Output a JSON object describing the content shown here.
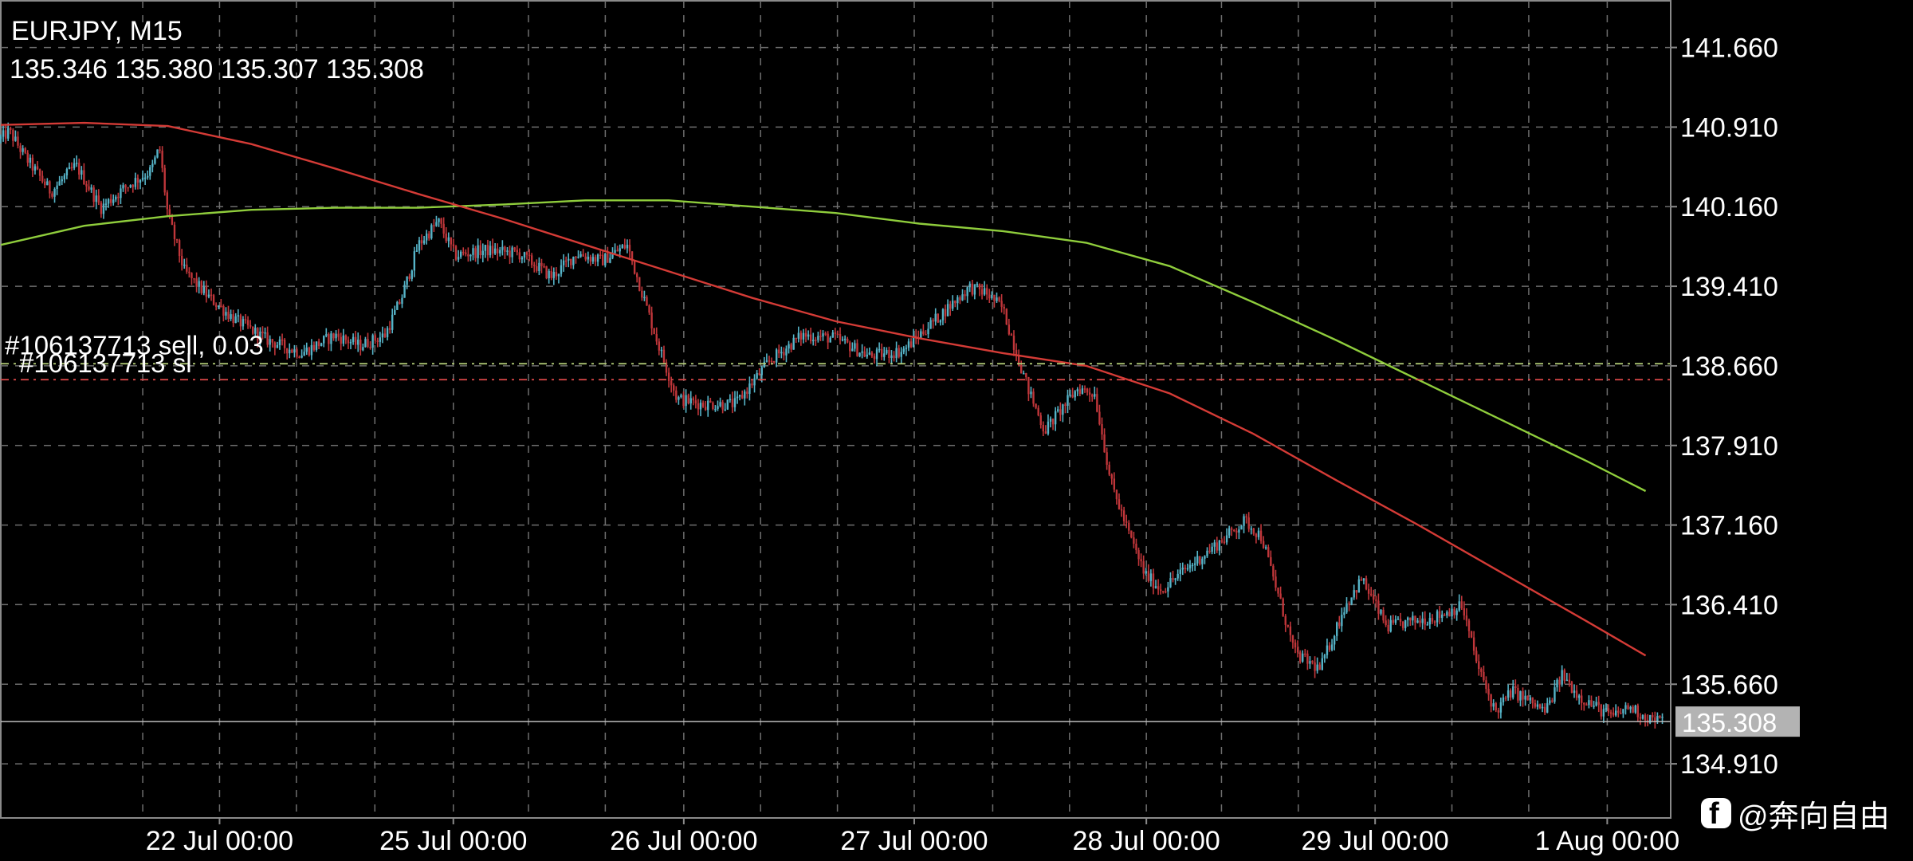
{
  "header": {
    "symbol_title": "EURJPY, M15",
    "ohlc_text": "135.346 135.380 135.307 135.308"
  },
  "watermark": {
    "icon": "facebook-icon",
    "text": "@奔向自由"
  },
  "chart_data": {
    "type": "candlestick",
    "symbol": "EURJPY",
    "timeframe": "M15",
    "ohlc": {
      "open": 135.346,
      "high": 135.38,
      "low": 135.307,
      "close": 135.308
    },
    "y_ticks": [
      "141.660",
      "140.910",
      "140.160",
      "139.410",
      "138.660",
      "137.910",
      "137.160",
      "136.410",
      "135.660",
      "134.910"
    ],
    "y_tick_values": [
      141.66,
      140.91,
      140.16,
      139.41,
      138.66,
      137.91,
      137.16,
      136.41,
      135.66,
      134.91
    ],
    "ylim": [
      134.4,
      142.1
    ],
    "x_ticks": [
      "22 Jul 00:00",
      "25 Jul 00:00",
      "26 Jul 00:00",
      "27 Jul 00:00",
      "28 Jul 00:00",
      "29 Jul 00:00",
      "1 Aug 00:00"
    ],
    "x_tick_index": [
      0.131,
      0.271,
      0.409,
      0.547,
      0.686,
      0.823,
      0.962
    ],
    "x_grid_index": [
      0.085,
      0.131,
      0.177,
      0.224,
      0.271,
      0.316,
      0.362,
      0.409,
      0.455,
      0.501,
      0.547,
      0.594,
      0.64,
      0.686,
      0.731,
      0.777,
      0.823,
      0.869,
      0.915,
      0.962
    ],
    "current_price": 135.308,
    "current_price_label": "135.308",
    "grid": true,
    "colors": {
      "background": "#000000",
      "bull_candle": "#56b4c8",
      "bear_candle": "#c0363a",
      "ma_green": "#8fcd3c",
      "ma_red": "#d43b36",
      "grid": "#6e6e6e",
      "order_line": "#b8d27a",
      "sl_line": "#e0494a",
      "price_label_bg": "#b3b3b3",
      "axis_text": "#ffffff"
    },
    "order_lines": [
      {
        "label": "#106137713 sell, 0.03",
        "price": 138.68,
        "kind": "order"
      },
      {
        "label": "#106137713 sl",
        "price": 138.53,
        "kind": "sl"
      }
    ],
    "path": [
      [
        0.0,
        140.8
      ],
      [
        0.005,
        140.87
      ],
      [
        0.015,
        140.62
      ],
      [
        0.03,
        140.3
      ],
      [
        0.045,
        140.55
      ],
      [
        0.06,
        140.15
      ],
      [
        0.075,
        140.35
      ],
      [
        0.09,
        140.5
      ],
      [
        0.095,
        140.72
      ],
      [
        0.1,
        140.08
      ],
      [
        0.11,
        139.55
      ],
      [
        0.125,
        139.3
      ],
      [
        0.14,
        139.1
      ],
      [
        0.16,
        138.9
      ],
      [
        0.18,
        138.78
      ],
      [
        0.2,
        138.95
      ],
      [
        0.215,
        138.85
      ],
      [
        0.23,
        138.95
      ],
      [
        0.24,
        139.3
      ],
      [
        0.25,
        139.8
      ],
      [
        0.262,
        140.02
      ],
      [
        0.272,
        139.7
      ],
      [
        0.29,
        139.75
      ],
      [
        0.31,
        139.72
      ],
      [
        0.33,
        139.5
      ],
      [
        0.345,
        139.72
      ],
      [
        0.36,
        139.65
      ],
      [
        0.375,
        139.8
      ],
      [
        0.385,
        139.3
      ],
      [
        0.395,
        138.8
      ],
      [
        0.405,
        138.35
      ],
      [
        0.42,
        138.3
      ],
      [
        0.44,
        138.3
      ],
      [
        0.46,
        138.7
      ],
      [
        0.48,
        138.95
      ],
      [
        0.5,
        138.92
      ],
      [
        0.52,
        138.75
      ],
      [
        0.54,
        138.8
      ],
      [
        0.56,
        139.1
      ],
      [
        0.58,
        139.4
      ],
      [
        0.59,
        139.35
      ],
      [
        0.6,
        139.2
      ],
      [
        0.615,
        138.45
      ],
      [
        0.625,
        138.05
      ],
      [
        0.635,
        138.25
      ],
      [
        0.645,
        138.45
      ],
      [
        0.655,
        138.4
      ],
      [
        0.665,
        137.55
      ],
      [
        0.675,
        137.1
      ],
      [
        0.685,
        136.7
      ],
      [
        0.695,
        136.55
      ],
      [
        0.71,
        136.75
      ],
      [
        0.73,
        137.0
      ],
      [
        0.745,
        137.2
      ],
      [
        0.755,
        137.05
      ],
      [
        0.765,
        136.5
      ],
      [
        0.775,
        135.95
      ],
      [
        0.79,
        135.8
      ],
      [
        0.805,
        136.4
      ],
      [
        0.815,
        136.65
      ],
      [
        0.83,
        136.2
      ],
      [
        0.845,
        136.25
      ],
      [
        0.86,
        136.3
      ],
      [
        0.875,
        136.4
      ],
      [
        0.885,
        135.8
      ],
      [
        0.895,
        135.4
      ],
      [
        0.905,
        135.6
      ],
      [
        0.915,
        135.5
      ],
      [
        0.925,
        135.4
      ],
      [
        0.935,
        135.75
      ],
      [
        0.945,
        135.55
      ],
      [
        0.955,
        135.45
      ],
      [
        0.965,
        135.35
      ],
      [
        0.975,
        135.45
      ],
      [
        0.985,
        135.35
      ],
      [
        0.995,
        135.31
      ]
    ],
    "series": [
      {
        "color": "#8fcd3c",
        "points": [
          [
            0.0,
            139.8
          ],
          [
            0.05,
            139.98
          ],
          [
            0.1,
            140.07
          ],
          [
            0.15,
            140.13
          ],
          [
            0.2,
            140.15
          ],
          [
            0.25,
            140.15
          ],
          [
            0.3,
            140.18
          ],
          [
            0.35,
            140.22
          ],
          [
            0.4,
            140.22
          ],
          [
            0.45,
            140.16
          ],
          [
            0.5,
            140.1
          ],
          [
            0.55,
            140.0
          ],
          [
            0.6,
            139.93
          ],
          [
            0.65,
            139.82
          ],
          [
            0.7,
            139.6
          ],
          [
            0.75,
            139.26
          ],
          [
            0.8,
            138.9
          ],
          [
            0.85,
            138.52
          ],
          [
            0.9,
            138.14
          ],
          [
            0.95,
            137.76
          ],
          [
            0.985,
            137.48
          ]
        ]
      },
      {
        "color": "#d43b36",
        "points": [
          [
            0.0,
            140.93
          ],
          [
            0.05,
            140.95
          ],
          [
            0.1,
            140.92
          ],
          [
            0.15,
            140.75
          ],
          [
            0.2,
            140.52
          ],
          [
            0.25,
            140.28
          ],
          [
            0.3,
            140.05
          ],
          [
            0.35,
            139.8
          ],
          [
            0.4,
            139.55
          ],
          [
            0.45,
            139.3
          ],
          [
            0.5,
            139.08
          ],
          [
            0.55,
            138.92
          ],
          [
            0.6,
            138.78
          ],
          [
            0.65,
            138.66
          ],
          [
            0.7,
            138.4
          ],
          [
            0.75,
            138.02
          ],
          [
            0.8,
            137.58
          ],
          [
            0.85,
            137.15
          ],
          [
            0.9,
            136.7
          ],
          [
            0.95,
            136.25
          ],
          [
            0.985,
            135.93
          ]
        ]
      }
    ]
  }
}
